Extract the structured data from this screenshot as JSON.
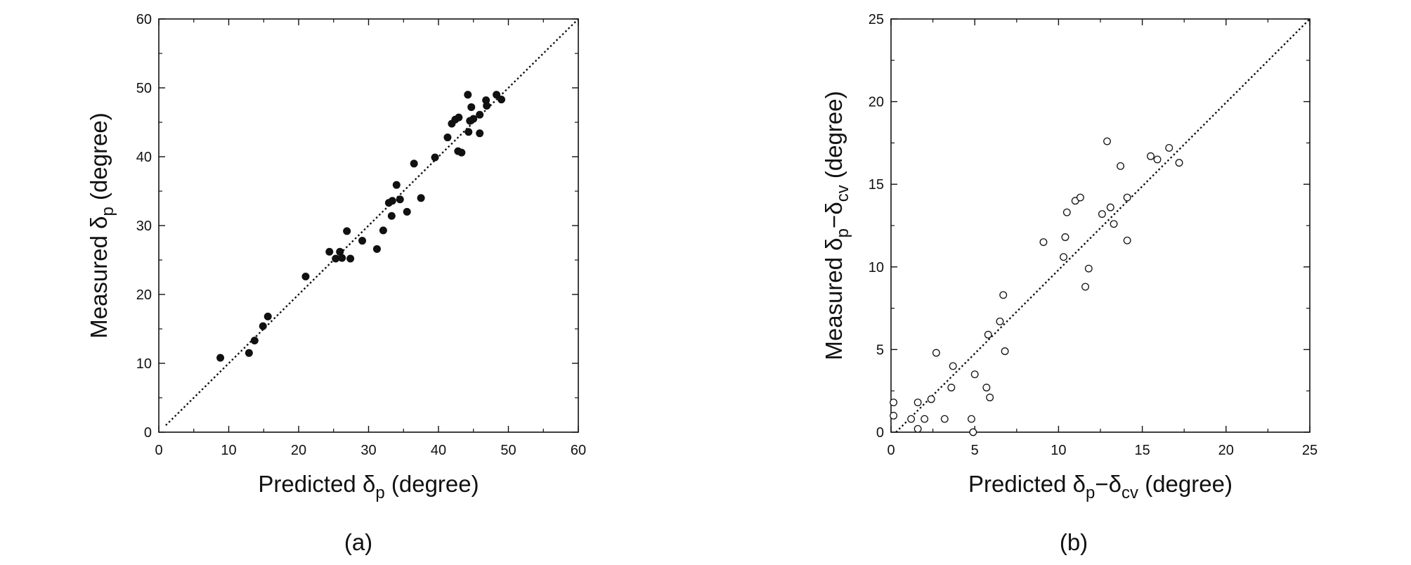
{
  "chart_data": [
    {
      "type": "scatter",
      "panel_label": "(a)",
      "xlabel": {
        "prefix": "Predicted ",
        "symbol": "δ",
        "sub1": "p",
        "suffix": " (degree)"
      },
      "ylabel": {
        "prefix": "Measured ",
        "symbol": "δ",
        "sub1": "p",
        "suffix": " (degree)"
      },
      "xlim": [
        0,
        60
      ],
      "ylim": [
        0,
        60
      ],
      "xticks": [
        "0",
        "10",
        "20",
        "30",
        "40",
        "50",
        "60"
      ],
      "yticks": [
        "0",
        "10",
        "20",
        "30",
        "40",
        "50",
        "60"
      ],
      "reference_line": {
        "style": "dotted",
        "from": [
          1,
          1
        ],
        "to": [
          60,
          60
        ]
      },
      "marker": "filled-circle",
      "points": [
        [
          8.8,
          10.8
        ],
        [
          12.9,
          11.5
        ],
        [
          13.7,
          13.3
        ],
        [
          14.9,
          15.4
        ],
        [
          15.6,
          16.8
        ],
        [
          21.0,
          22.6
        ],
        [
          24.4,
          26.2
        ],
        [
          25.3,
          25.2
        ],
        [
          25.9,
          26.2
        ],
        [
          26.2,
          25.3
        ],
        [
          26.9,
          29.2
        ],
        [
          27.4,
          25.2
        ],
        [
          29.1,
          27.8
        ],
        [
          31.2,
          26.6
        ],
        [
          32.1,
          29.3
        ],
        [
          32.9,
          33.3
        ],
        [
          33.3,
          31.4
        ],
        [
          33.4,
          33.6
        ],
        [
          34.0,
          35.9
        ],
        [
          34.5,
          33.8
        ],
        [
          35.5,
          32.0
        ],
        [
          36.5,
          39.0
        ],
        [
          37.5,
          34.0
        ],
        [
          39.5,
          39.9
        ],
        [
          41.3,
          42.8
        ],
        [
          41.9,
          44.8
        ],
        [
          42.4,
          45.4
        ],
        [
          42.9,
          45.7
        ],
        [
          42.8,
          40.8
        ],
        [
          43.3,
          40.6
        ],
        [
          44.2,
          49.0
        ],
        [
          44.3,
          43.6
        ],
        [
          44.5,
          45.2
        ],
        [
          44.7,
          47.2
        ],
        [
          45.0,
          45.5
        ],
        [
          45.9,
          46.1
        ],
        [
          45.9,
          43.4
        ],
        [
          46.8,
          48.2
        ],
        [
          46.9,
          47.4
        ],
        [
          48.3,
          49.0
        ],
        [
          49.0,
          48.3
        ]
      ]
    },
    {
      "type": "scatter",
      "panel_label": "(b)",
      "xlabel": {
        "prefix": "Predicted ",
        "symbol": "δ",
        "sub1": "p",
        "dash": "−",
        "symbol2": "δ",
        "sub2": "cv",
        "suffix": " (degree)"
      },
      "ylabel": {
        "prefix": "Measured ",
        "symbol": "δ",
        "sub1": "p",
        "dash": "−",
        "symbol2": "δ",
        "sub2": "cv",
        "suffix": " (degree)"
      },
      "xlim": [
        0,
        25
      ],
      "ylim": [
        0,
        25
      ],
      "xticks": [
        "0",
        "5",
        "10",
        "15",
        "20",
        "25"
      ],
      "yticks": [
        "0",
        "5",
        "10",
        "15",
        "20",
        "25"
      ],
      "reference_line": {
        "style": "dotted",
        "from": [
          0.3,
          0
        ],
        "to": [
          25,
          25
        ]
      },
      "marker": "open-circle",
      "points": [
        [
          0.15,
          1.8
        ],
        [
          0.15,
          1.0
        ],
        [
          1.2,
          0.8
        ],
        [
          1.6,
          1.8
        ],
        [
          1.6,
          0.2
        ],
        [
          2.0,
          0.8
        ],
        [
          2.4,
          2.0
        ],
        [
          2.7,
          4.8
        ],
        [
          3.2,
          0.8
        ],
        [
          3.6,
          2.7
        ],
        [
          3.7,
          4.0
        ],
        [
          4.8,
          0.8
        ],
        [
          4.9,
          0.0
        ],
        [
          5.0,
          3.5
        ],
        [
          5.7,
          2.7
        ],
        [
          5.8,
          5.9
        ],
        [
          5.9,
          2.1
        ],
        [
          6.5,
          6.7
        ],
        [
          6.7,
          8.3
        ],
        [
          6.8,
          4.9
        ],
        [
          9.1,
          11.5
        ],
        [
          10.3,
          10.6
        ],
        [
          10.4,
          11.8
        ],
        [
          10.5,
          13.3
        ],
        [
          11.0,
          14.0
        ],
        [
          11.3,
          14.2
        ],
        [
          11.6,
          8.8
        ],
        [
          11.8,
          9.9
        ],
        [
          12.6,
          13.2
        ],
        [
          12.9,
          17.6
        ],
        [
          13.1,
          13.6
        ],
        [
          13.3,
          12.6
        ],
        [
          13.7,
          16.1
        ],
        [
          14.1,
          11.6
        ],
        [
          14.1,
          14.2
        ],
        [
          15.5,
          16.7
        ],
        [
          15.9,
          16.5
        ],
        [
          16.6,
          17.2
        ],
        [
          17.2,
          16.3
        ]
      ]
    }
  ]
}
